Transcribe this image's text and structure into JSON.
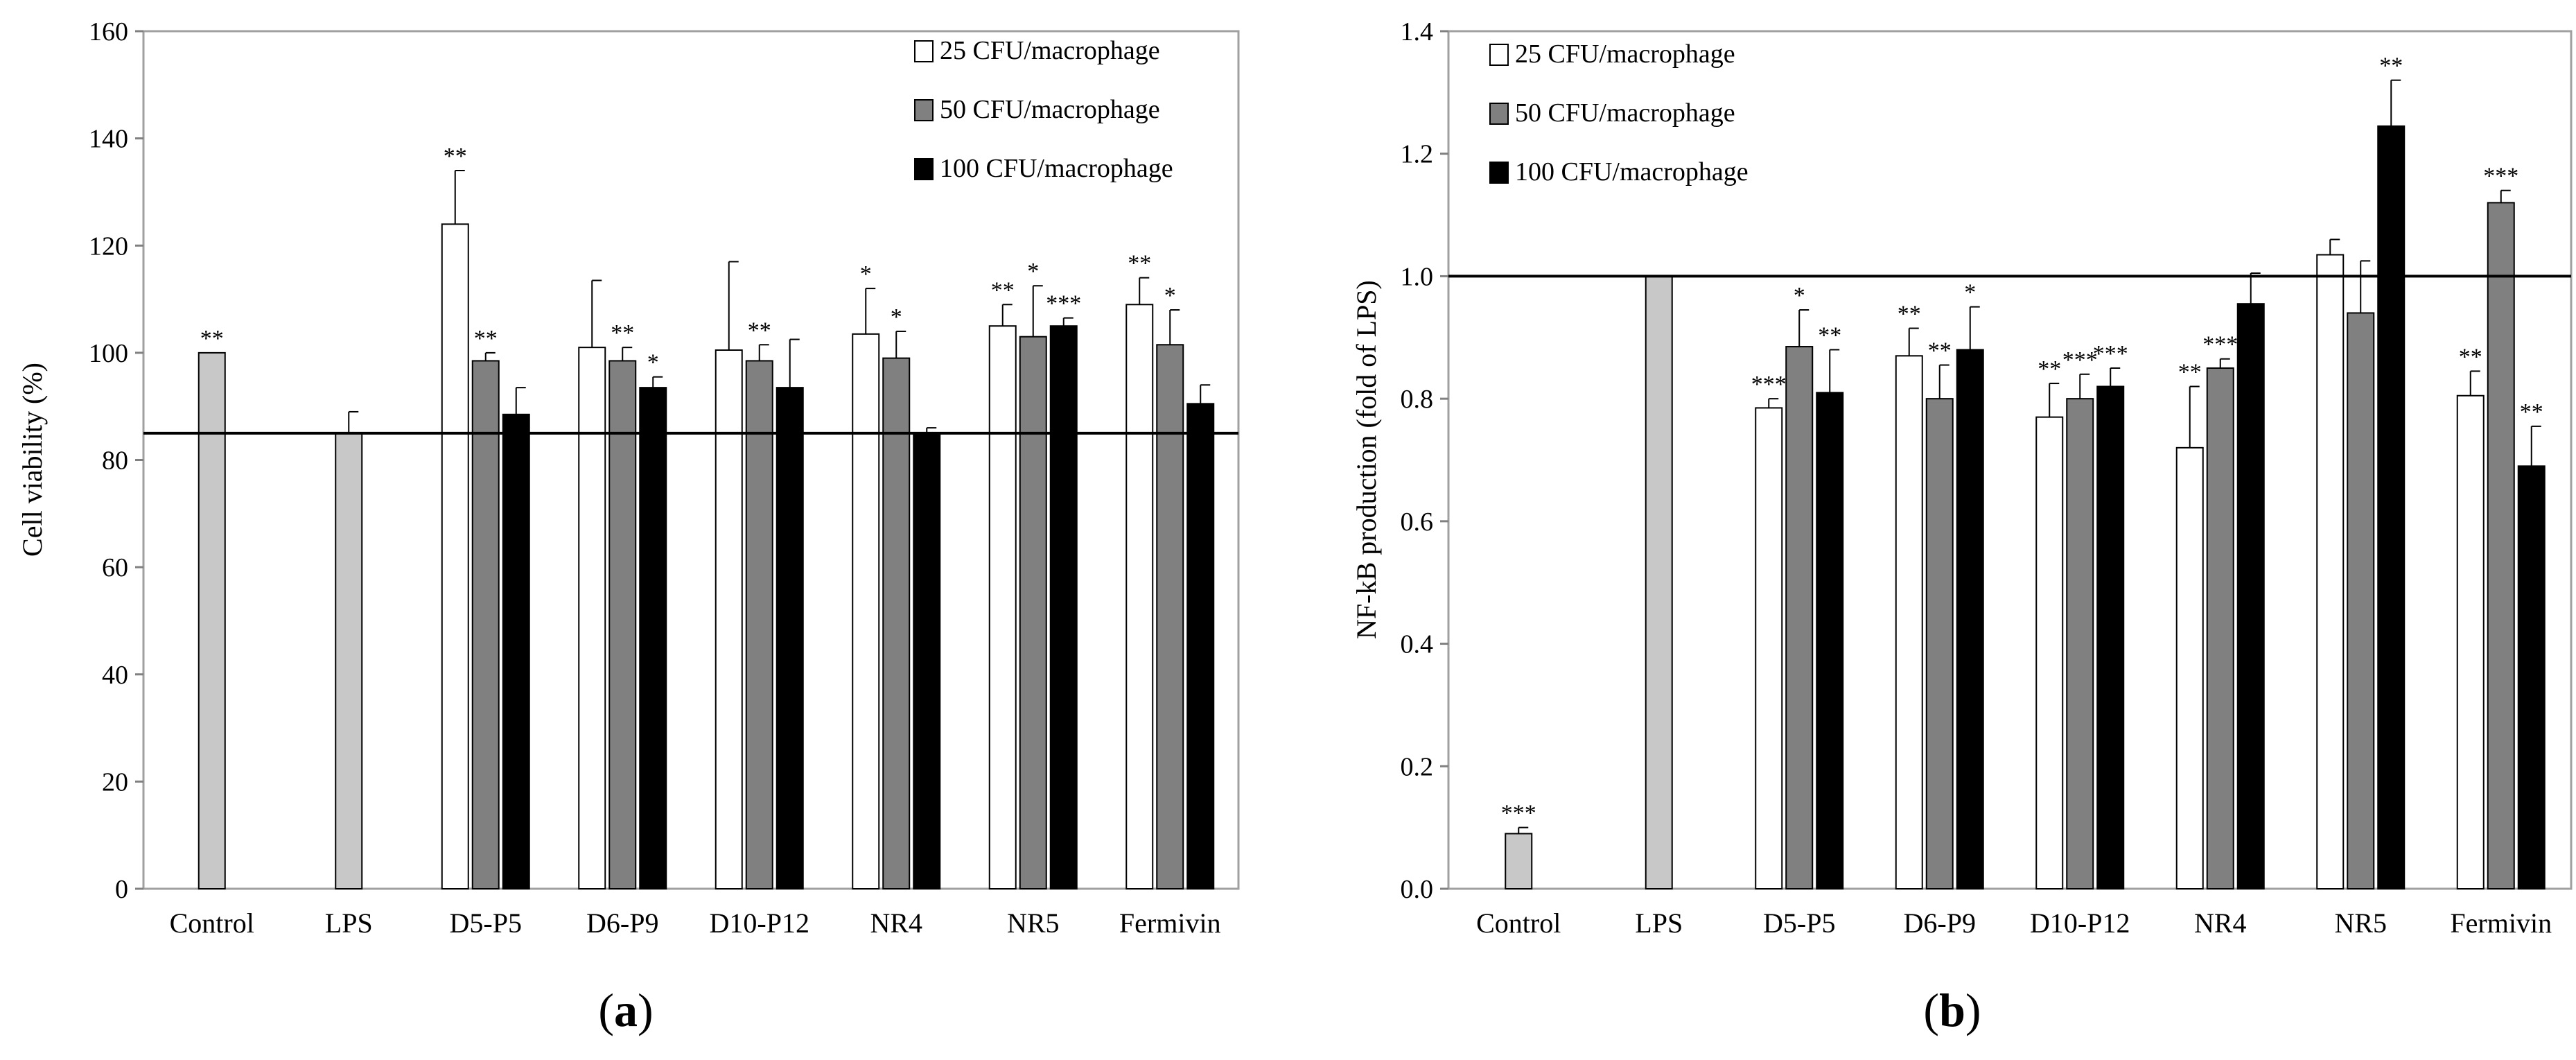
{
  "figure": {
    "panels": [
      {
        "label_open": "(",
        "label_letter": "a",
        "label_close": ")"
      },
      {
        "label_open": "(",
        "label_letter": "b",
        "label_close": ")"
      }
    ]
  },
  "chart_data": [
    {
      "type": "bar",
      "panel": "a",
      "ylabel": "Cell viability (%)",
      "xlabel": "",
      "ylim": [
        0,
        160
      ],
      "yticks": [
        0,
        20,
        40,
        60,
        80,
        100,
        120,
        140,
        160
      ],
      "ytick_labels": [
        "0",
        "20",
        "40",
        "60",
        "80",
        "100",
        "120",
        "140",
        "160"
      ],
      "reference_line": 85,
      "legend_position": "top-right",
      "categories": [
        "Control",
        "LPS",
        "D5-P5",
        "D6-P9",
        "D10-P12",
        "NR4",
        "NR5",
        "Fermivin"
      ],
      "control_series": {
        "name": "Controls",
        "color": "#c8c8c8",
        "values": [
          100,
          85,
          null,
          null,
          null,
          null,
          null,
          null
        ],
        "errors": [
          0,
          4,
          null,
          null,
          null,
          null,
          null,
          null
        ],
        "sig": [
          "**",
          "",
          "",
          "",
          "",
          "",
          "",
          ""
        ]
      },
      "series": [
        {
          "name": "25 CFU/macrophage",
          "color": "#ffffff",
          "values": [
            null,
            null,
            124,
            101,
            100.5,
            103.5,
            105,
            109
          ],
          "errors": [
            null,
            null,
            10,
            12.5,
            16.5,
            8.5,
            4,
            5
          ],
          "sig": [
            "",
            "",
            "**",
            "",
            "",
            "*",
            "**",
            "**"
          ]
        },
        {
          "name": "50 CFU/macrophage",
          "color": "#808080",
          "values": [
            null,
            null,
            98.5,
            98.5,
            98.5,
            99,
            103,
            101.5
          ],
          "errors": [
            null,
            null,
            1.5,
            2.5,
            3,
            5,
            9.5,
            6.5
          ],
          "sig": [
            "",
            "",
            "**",
            "**",
            "**",
            "*",
            "*",
            "*"
          ]
        },
        {
          "name": "100 CFU/macrophage",
          "color": "#000000",
          "values": [
            null,
            null,
            88.5,
            93.5,
            93.5,
            85,
            105,
            90.5
          ],
          "errors": [
            null,
            null,
            5,
            2,
            9,
            1,
            1.5,
            3.5
          ],
          "sig": [
            "",
            "",
            "",
            "*",
            "",
            "",
            "***",
            ""
          ]
        }
      ]
    },
    {
      "type": "bar",
      "panel": "b",
      "ylabel": "NF-kB production (fold of LPS)",
      "xlabel": "",
      "ylim": [
        0,
        1.4
      ],
      "yticks": [
        0,
        0.2,
        0.4,
        0.6,
        0.8,
        1.0,
        1.2,
        1.4
      ],
      "ytick_labels": [
        "0.0",
        "0.2",
        "0.4",
        "0.6",
        "0.8",
        "1.0",
        "1.2",
        "1.4"
      ],
      "reference_line": 1.0,
      "legend_position": "top-left",
      "categories": [
        "Control",
        "LPS",
        "D5-P5",
        "D6-P9",
        "D10-P12",
        "NR4",
        "NR5",
        "Fermivin"
      ],
      "control_series": {
        "name": "Controls",
        "color": "#c8c8c8",
        "values": [
          0.09,
          1.0,
          null,
          null,
          null,
          null,
          null,
          null
        ],
        "errors": [
          0.01,
          0,
          null,
          null,
          null,
          null,
          null,
          null
        ],
        "sig": [
          "***",
          "",
          "",
          "",
          "",
          "",
          "",
          ""
        ]
      },
      "series": [
        {
          "name": "25 CFU/macrophage",
          "color": "#ffffff",
          "values": [
            null,
            null,
            0.785,
            0.87,
            0.77,
            0.72,
            1.035,
            0.805
          ],
          "errors": [
            null,
            null,
            0.015,
            0.045,
            0.055,
            0.1,
            0.025,
            0.04
          ],
          "sig": [
            "",
            "",
            "***",
            "**",
            "**",
            "**",
            "",
            "**"
          ]
        },
        {
          "name": "50 CFU/macrophage",
          "color": "#808080",
          "values": [
            null,
            null,
            0.885,
            0.8,
            0.8,
            0.85,
            0.94,
            1.12
          ],
          "errors": [
            null,
            null,
            0.06,
            0.055,
            0.04,
            0.015,
            0.085,
            0.02
          ],
          "sig": [
            "",
            "",
            "*",
            "**",
            "***",
            "***",
            "",
            "***"
          ]
        },
        {
          "name": "100 CFU/macrophage",
          "color": "#000000",
          "values": [
            null,
            null,
            0.81,
            0.88,
            0.82,
            0.955,
            1.245,
            0.69
          ],
          "errors": [
            null,
            null,
            0.07,
            0.07,
            0.03,
            0.05,
            0.075,
            0.065
          ],
          "sig": [
            "",
            "",
            "**",
            "*",
            "***",
            "",
            "**",
            "**"
          ]
        }
      ]
    }
  ]
}
